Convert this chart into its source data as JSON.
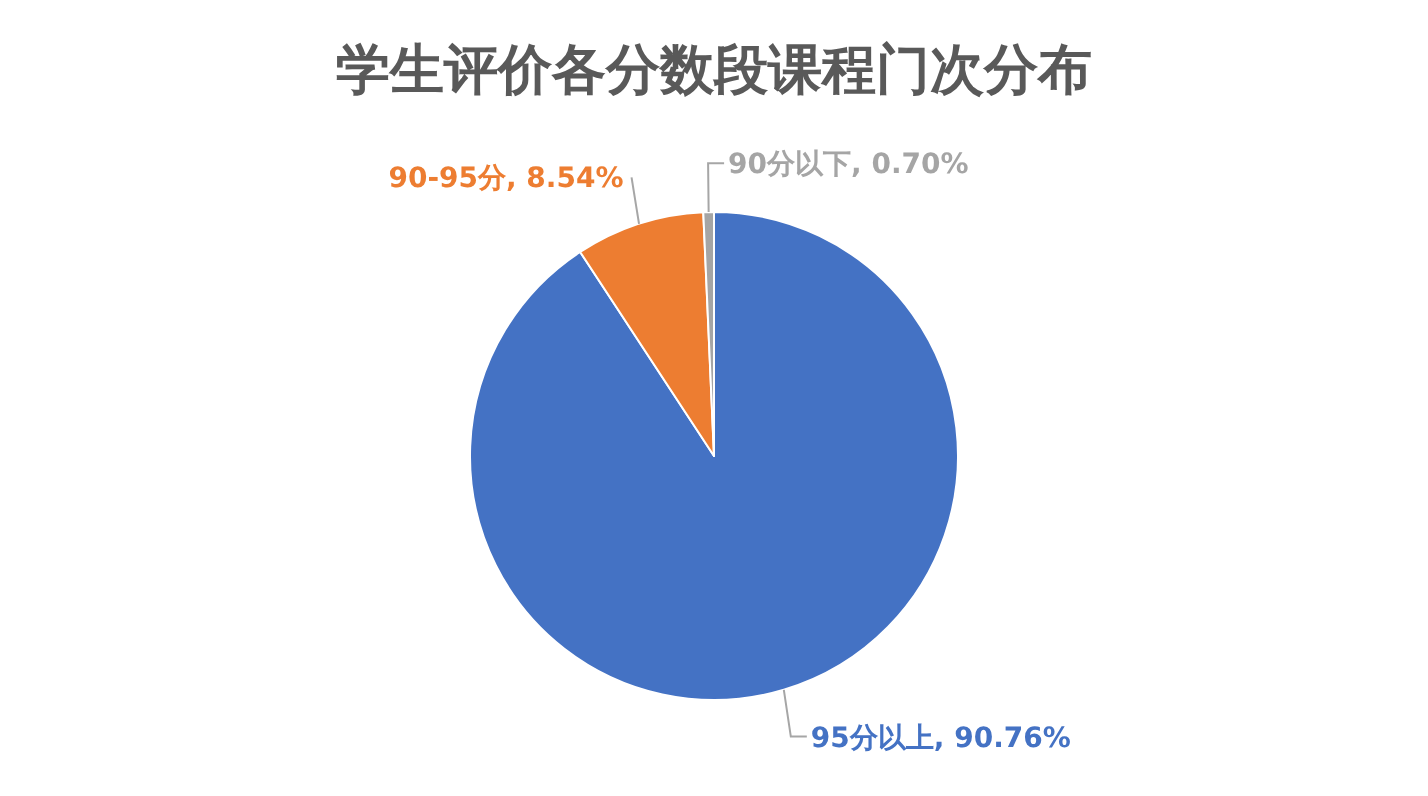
{
  "chart_data": {
    "type": "pie",
    "title": "学生评价各分数段课程门次分布",
    "categories": [
      "95分以上",
      "90-95分",
      "90分以下"
    ],
    "values": [
      90.76,
      8.54,
      0.7
    ],
    "value_labels": [
      ", 90.76%",
      ", 8.54%",
      ", 0.70%"
    ],
    "colors": [
      "#4472c4",
      "#ed7d31",
      "#a5a5a5"
    ]
  }
}
